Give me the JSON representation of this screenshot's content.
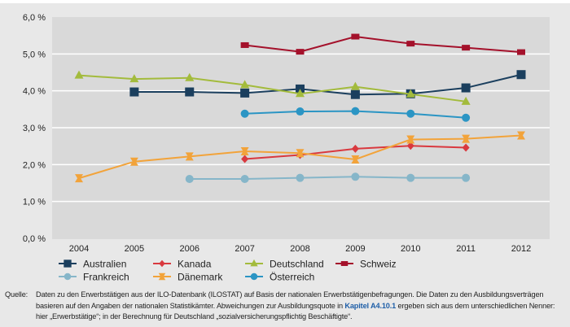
{
  "chart_data": {
    "type": "line",
    "title": "",
    "xlabel": "",
    "ylabel": "",
    "x": [
      "2004",
      "2005",
      "2006",
      "2007",
      "2008",
      "2009",
      "2010",
      "2011",
      "2012"
    ],
    "ylim": [
      0,
      6
    ],
    "yticks": [
      0,
      1,
      2,
      3,
      4,
      5,
      6
    ],
    "ytick_labels": [
      "0,0 %",
      "1,0 %",
      "2,0 %",
      "3,0 %",
      "4,0 %",
      "5,0 %",
      "6,0 %"
    ],
    "grid": true,
    "legend_position": "bottom",
    "series": [
      {
        "name": "Australien",
        "marker": "square",
        "color": "#1b3f5e",
        "values": [
          null,
          3.97,
          3.97,
          3.94,
          4.05,
          3.9,
          3.92,
          4.08,
          4.44
        ]
      },
      {
        "name": "Kanada",
        "marker": "diamond",
        "color": "#d9393f",
        "values": [
          null,
          null,
          null,
          2.15,
          2.26,
          2.43,
          2.51,
          2.46,
          null
        ]
      },
      {
        "name": "Deutschland",
        "marker": "triangle",
        "color": "#a3bb3c",
        "values": [
          4.42,
          4.32,
          4.35,
          4.16,
          3.92,
          4.11,
          3.91,
          3.71,
          null
        ]
      },
      {
        "name": "Schweiz",
        "marker": "rect",
        "color": "#a4112b",
        "values": [
          null,
          null,
          null,
          5.24,
          5.06,
          5.47,
          5.28,
          5.17,
          5.05
        ]
      },
      {
        "name": "Frankreich",
        "marker": "circle",
        "color": "#86b6c9",
        "values": [
          null,
          null,
          1.61,
          1.61,
          1.64,
          1.67,
          1.64,
          1.64,
          null
        ]
      },
      {
        "name": "Dänemark",
        "marker": "hourglass",
        "color": "#f2a33a",
        "values": [
          1.63,
          2.08,
          2.22,
          2.36,
          2.31,
          2.14,
          2.68,
          2.7,
          2.79
        ]
      },
      {
        "name": "Österreich",
        "marker": "circle",
        "color": "#2b95c4",
        "values": [
          null,
          null,
          null,
          3.38,
          3.44,
          3.45,
          3.38,
          3.27,
          null
        ]
      }
    ]
  },
  "footnote": {
    "prefix": "Quelle:",
    "text_before_link": "Daten zu den Erwerbstätigen aus der ILO-Datenbank (ILOSTAT) auf Basis der nationalen Erwerbstätigenbefragungen. Die Daten zu den Ausbildungsverträgen basieren auf den Angaben der nationalen Statistikämter. Abweichungen zur Ausbildungsquote in ",
    "link_text": "Kapitel A4.10.1",
    "text_after_link": " ergeben sich aus dem unterschiedlichen Nenner: hier „Erwerbstätige“; in der Berechnung für Deutschland „sozialversicherungspflichtig Beschäftigte“."
  }
}
